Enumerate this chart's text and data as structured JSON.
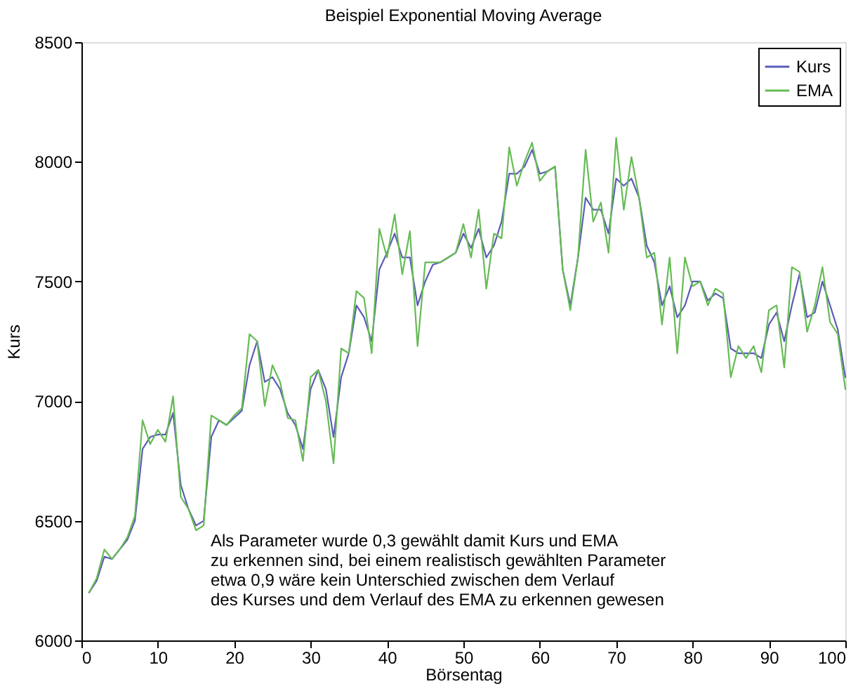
{
  "chart_data": {
    "type": "line",
    "title": "Beispiel Exponential Moving Average",
    "xlabel": "Börsentag",
    "ylabel": "Kurs",
    "x": [
      1,
      2,
      3,
      4,
      5,
      6,
      7,
      8,
      9,
      10,
      11,
      12,
      13,
      14,
      15,
      16,
      17,
      18,
      19,
      20,
      21,
      22,
      23,
      24,
      25,
      26,
      27,
      28,
      29,
      30,
      31,
      32,
      33,
      34,
      35,
      36,
      37,
      38,
      39,
      40,
      41,
      42,
      43,
      44,
      45,
      46,
      47,
      48,
      49,
      50,
      51,
      52,
      53,
      54,
      55,
      56,
      57,
      58,
      59,
      60,
      61,
      62,
      63,
      64,
      65,
      66,
      67,
      68,
      69,
      70,
      71,
      72,
      73,
      74,
      75,
      76,
      77,
      78,
      79,
      80,
      81,
      82,
      83,
      84,
      85,
      86,
      87,
      88,
      89,
      90,
      91,
      92,
      93,
      94,
      95,
      96,
      97,
      98,
      99,
      100
    ],
    "series": [
      {
        "name": "Kurs",
        "color": "#5c5cb8",
        "values": [
          6200,
          6250,
          6350,
          6340,
          6380,
          6420,
          6500,
          6800,
          6850,
          6860,
          6860,
          6950,
          6650,
          6550,
          6480,
          6500,
          6850,
          6920,
          6900,
          6930,
          6960,
          7150,
          7250,
          7080,
          7100,
          7050,
          6950,
          6900,
          6800,
          7050,
          7130,
          7050,
          6850,
          7100,
          7200,
          7400,
          7350,
          7250,
          7550,
          7620,
          7700,
          7600,
          7600,
          7400,
          7500,
          7570,
          7580,
          7600,
          7620,
          7700,
          7640,
          7720,
          7600,
          7650,
          7750,
          7950,
          7950,
          7980,
          8050,
          7950,
          7960,
          7980,
          7550,
          7400,
          7600,
          7850,
          7800,
          7800,
          7700,
          7930,
          7900,
          7930,
          7850,
          7650,
          7580,
          7400,
          7480,
          7350,
          7400,
          7500,
          7500,
          7420,
          7450,
          7430,
          7220,
          7200,
          7200,
          7200,
          7180,
          7320,
          7370,
          7250,
          7400,
          7530,
          7350,
          7370,
          7500,
          7400,
          7300,
          7100
        ]
      },
      {
        "name": "EMA",
        "color": "#66bb55",
        "values": [
          6200,
          6260,
          6380,
          6340,
          6380,
          6430,
          6520,
          6920,
          6820,
          6880,
          6830,
          7020,
          6600,
          6550,
          6460,
          6480,
          6940,
          6920,
          6900,
          6940,
          6970,
          7280,
          7250,
          6980,
          7150,
          7080,
          6930,
          6920,
          6750,
          7100,
          7130,
          7000,
          6740,
          7220,
          7200,
          7460,
          7430,
          7200,
          7720,
          7600,
          7780,
          7530,
          7710,
          7230,
          7580,
          7580,
          7580,
          7600,
          7620,
          7740,
          7600,
          7800,
          7470,
          7700,
          7680,
          8060,
          7900,
          8000,
          8080,
          7920,
          7960,
          7980,
          7550,
          7380,
          7600,
          8050,
          7750,
          7830,
          7620,
          8100,
          7800,
          8020,
          7850,
          7600,
          7620,
          7320,
          7600,
          7200,
          7600,
          7480,
          7500,
          7400,
          7470,
          7450,
          7100,
          7230,
          7180,
          7230,
          7120,
          7380,
          7400,
          7140,
          7560,
          7540,
          7290,
          7400,
          7560,
          7330,
          7280,
          7050
        ]
      }
    ],
    "xlim": [
      0,
      100
    ],
    "xticks": [
      0,
      10,
      20,
      30,
      40,
      50,
      60,
      70,
      80,
      90,
      100
    ],
    "ylim": [
      6000,
      8500
    ],
    "yticks": [
      6000,
      6500,
      7000,
      7500,
      8000,
      8500
    ],
    "grid": false,
    "legend": "top right",
    "line_style": "solid",
    "annotations": [
      "Als Parameter wurde 0,3 gewählt damit Kurs und EMA\nzu erkennen sind, bei einem realistisch gewählten Parameter\netwa 0,9 wäre kein Unterschied zwischen dem Verlauf\ndes Kurses und dem Verlauf des EMA zu erkennen gewesen"
    ]
  }
}
